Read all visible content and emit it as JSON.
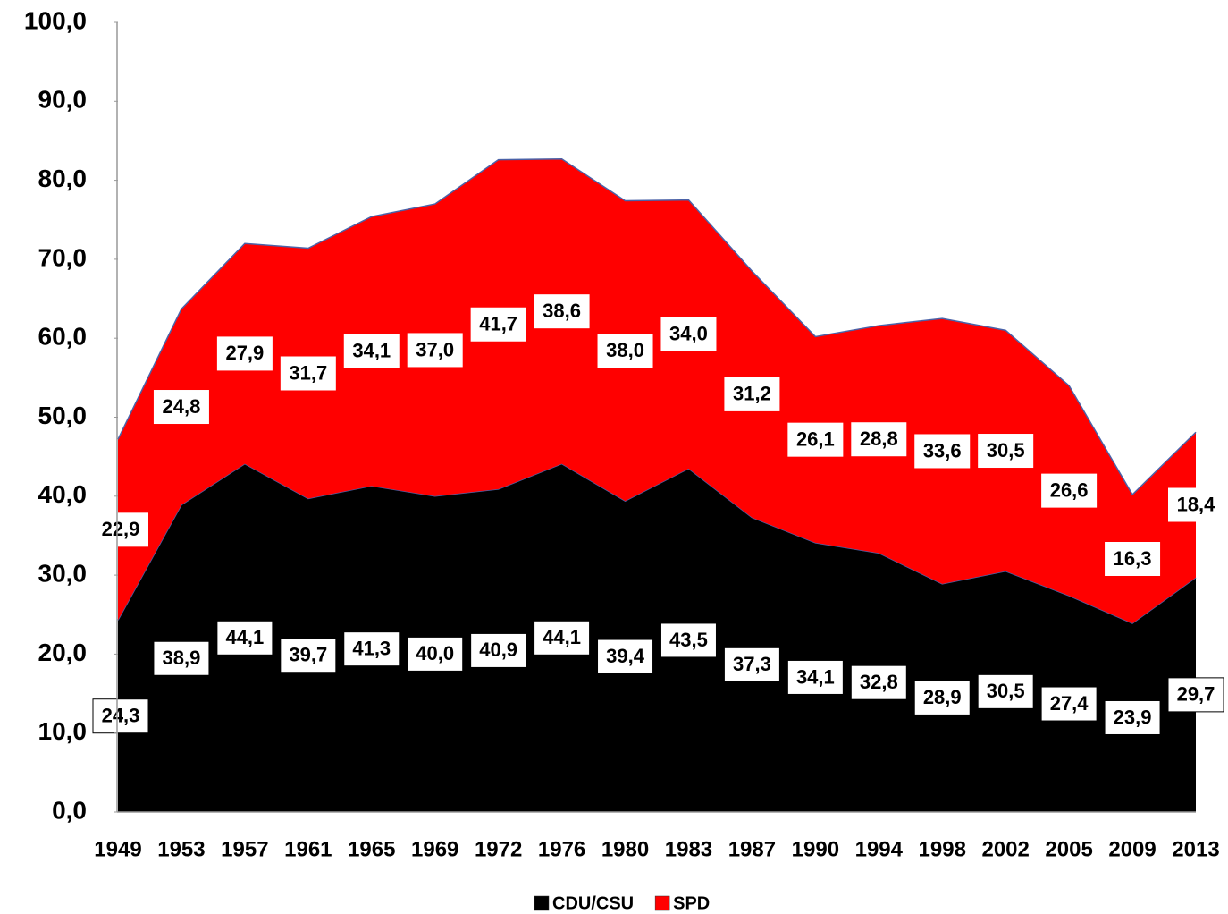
{
  "chart_data": {
    "type": "stacked_area",
    "categories": [
      "1949",
      "1953",
      "1957",
      "1961",
      "1965",
      "1969",
      "1972",
      "1976",
      "1980",
      "1983",
      "1987",
      "1990",
      "1994",
      "1998",
      "2002",
      "2005",
      "2009",
      "2013"
    ],
    "series": [
      {
        "name": "CDU/CSU",
        "color": "#000000",
        "values": [
          24.3,
          38.9,
          44.1,
          39.7,
          41.3,
          40.0,
          40.9,
          44.1,
          39.4,
          43.5,
          37.3,
          34.1,
          32.8,
          28.9,
          30.5,
          27.4,
          23.9,
          29.7
        ],
        "value_labels": [
          "24,3",
          "38,9",
          "44,1",
          "39,7",
          "41,3",
          "40,0",
          "40,9",
          "44,1",
          "39,4",
          "43,5",
          "37,3",
          "34,1",
          "32,8",
          "28,9",
          "30,5",
          "27,4",
          "23,9",
          "29,7"
        ]
      },
      {
        "name": "SPD",
        "color": "#ff0000",
        "values": [
          22.9,
          24.8,
          27.9,
          31.7,
          34.1,
          37.0,
          41.7,
          38.6,
          38.0,
          34.0,
          31.2,
          26.1,
          28.8,
          33.6,
          30.5,
          26.6,
          16.3,
          18.4
        ],
        "value_labels": [
          "22,9",
          "24,8",
          "27,9",
          "31,7",
          "34,1",
          "37,0",
          "41,7",
          "38,6",
          "38,0",
          "34,0",
          "31,2",
          "26,1",
          "28,8",
          "33,6",
          "30,5",
          "26,6",
          "16,3",
          "18,4"
        ]
      }
    ],
    "ylim": [
      0,
      100
    ],
    "yticks": [
      {
        "value": 0,
        "label": "0,0"
      },
      {
        "value": 10,
        "label": "10,0"
      },
      {
        "value": 20,
        "label": "20,0"
      },
      {
        "value": 30,
        "label": "30,0"
      },
      {
        "value": 40,
        "label": "40,0"
      },
      {
        "value": 50,
        "label": "50,0"
      },
      {
        "value": 60,
        "label": "60,0"
      },
      {
        "value": 70,
        "label": "70,0"
      },
      {
        "value": 80,
        "label": "80,0"
      },
      {
        "value": 90,
        "label": "90,0"
      },
      {
        "value": 100,
        "label": "100,0"
      }
    ],
    "legend": "bottom"
  }
}
